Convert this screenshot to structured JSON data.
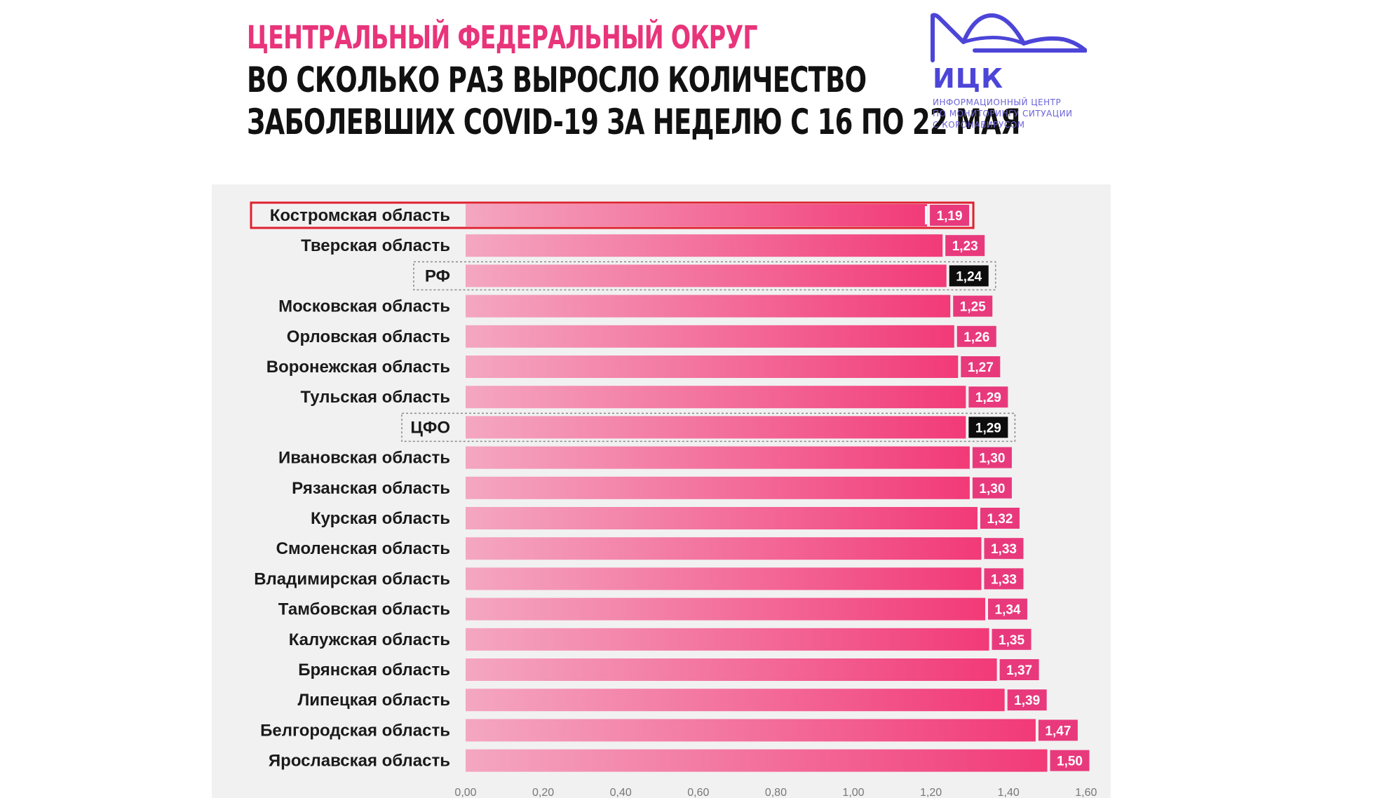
{
  "header": {
    "line1": "ЦЕНТРАЛЬНЫЙ ФЕДЕРАЛЬНЫЙ ОКРУГ",
    "line2": "ВО СКОЛЬКО РАЗ ВЫРОСЛО КОЛИЧЕСТВО",
    "line3": "ЗАБОЛЕВШИХ COVID-19 ЗА НЕДЕЛЮ С 16 ПО 22 МАЯ"
  },
  "logo": {
    "abbr": "ИЦК",
    "subtitle": "ИНФОРМАЦИОННЫЙ ЦЕНТР\nПО МОНИТОРИНГУ СИТУАЦИИ\nС КОРОНАВИРУСОМ",
    "color": "#4c45d8"
  },
  "colors": {
    "bar_start": "#f4a7c1",
    "bar_end": "#f23a78",
    "value_box": "#e8397c",
    "reference_box": "#0d0d0d",
    "highlight_border": "#e0202f",
    "dotted_border": "#888888"
  },
  "chart_data": {
    "type": "bar",
    "orientation": "horizontal",
    "categories": [
      "Костромская область",
      "Тверская область",
      "РФ",
      "Московская область",
      "Орловская область",
      "Воронежская область",
      "Тульская область",
      "ЦФО",
      "Ивановская область",
      "Рязанская область",
      "Курская область",
      "Смоленская область",
      "Владимирская область",
      "Тамбовская область",
      "Калужская область",
      "Брянская область",
      "Липецкая область",
      "Белгородская область",
      "Ярославская область"
    ],
    "values": [
      1.19,
      1.23,
      1.24,
      1.25,
      1.26,
      1.27,
      1.29,
      1.29,
      1.3,
      1.3,
      1.32,
      1.33,
      1.33,
      1.34,
      1.35,
      1.37,
      1.39,
      1.47,
      1.5
    ],
    "value_labels": [
      "1,19",
      "1,23",
      "1,24",
      "1,25",
      "1,26",
      "1,27",
      "1,29",
      "1,29",
      "1,30",
      "1,30",
      "1,32",
      "1,33",
      "1,33",
      "1,34",
      "1,35",
      "1,37",
      "1,39",
      "1,47",
      "1,50"
    ],
    "highlighted": [
      "Костромская область"
    ],
    "reference_rows": [
      "РФ",
      "ЦФО"
    ],
    "xlim": [
      0,
      1.6
    ],
    "xticks": [
      0,
      0.2,
      0.4,
      0.6,
      0.8,
      1.0,
      1.2,
      1.4,
      1.6
    ],
    "xtick_labels": [
      "0,00",
      "0,20",
      "0,40",
      "0,60",
      "0,80",
      "1,00",
      "1,20",
      "1,40",
      "1,60"
    ],
    "grid": false,
    "title": "",
    "xlabel": "",
    "ylabel": ""
  }
}
